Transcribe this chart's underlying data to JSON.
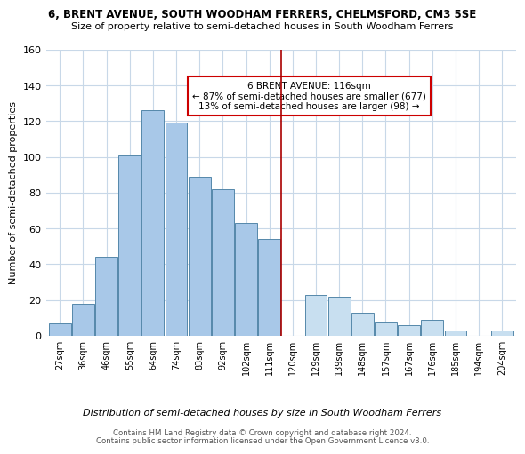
{
  "title1": "6, BRENT AVENUE, SOUTH WOODHAM FERRERS, CHELMSFORD, CM3 5SE",
  "title2": "Size of property relative to semi-detached houses in South Woodham Ferrers",
  "xlabel": "Distribution of semi-detached houses by size in South Woodham Ferrers",
  "ylabel": "Number of semi-detached properties",
  "footer1": "Contains HM Land Registry data © Crown copyright and database right 2024.",
  "footer2": "Contains public sector information licensed under the Open Government Licence v3.0.",
  "bin_labels": [
    "27sqm",
    "36sqm",
    "46sqm",
    "55sqm",
    "64sqm",
    "74sqm",
    "83sqm",
    "92sqm",
    "102sqm",
    "111sqm",
    "120sqm",
    "129sqm",
    "139sqm",
    "148sqm",
    "157sqm",
    "167sqm",
    "176sqm",
    "185sqm",
    "194sqm",
    "204sqm"
  ],
  "bar_heights": [
    7,
    18,
    44,
    101,
    126,
    119,
    89,
    82,
    63,
    54,
    0,
    23,
    22,
    13,
    8,
    6,
    9,
    3,
    0,
    3
  ],
  "property_bin_index": 10,
  "property_label": "6 BRENT AVENUE: 116sqm",
  "annotation_line1": "← 87% of semi-detached houses are smaller (677)",
  "annotation_line2": "13% of semi-detached houses are larger (98) →",
  "bar_color_left": "#a8c8e8",
  "bar_color_right": "#c8dff0",
  "vline_color": "#aa0000",
  "annotation_box_color": "#cc0000",
  "ylim": [
    0,
    160
  ],
  "yticks": [
    0,
    20,
    40,
    60,
    80,
    100,
    120,
    140,
    160
  ]
}
